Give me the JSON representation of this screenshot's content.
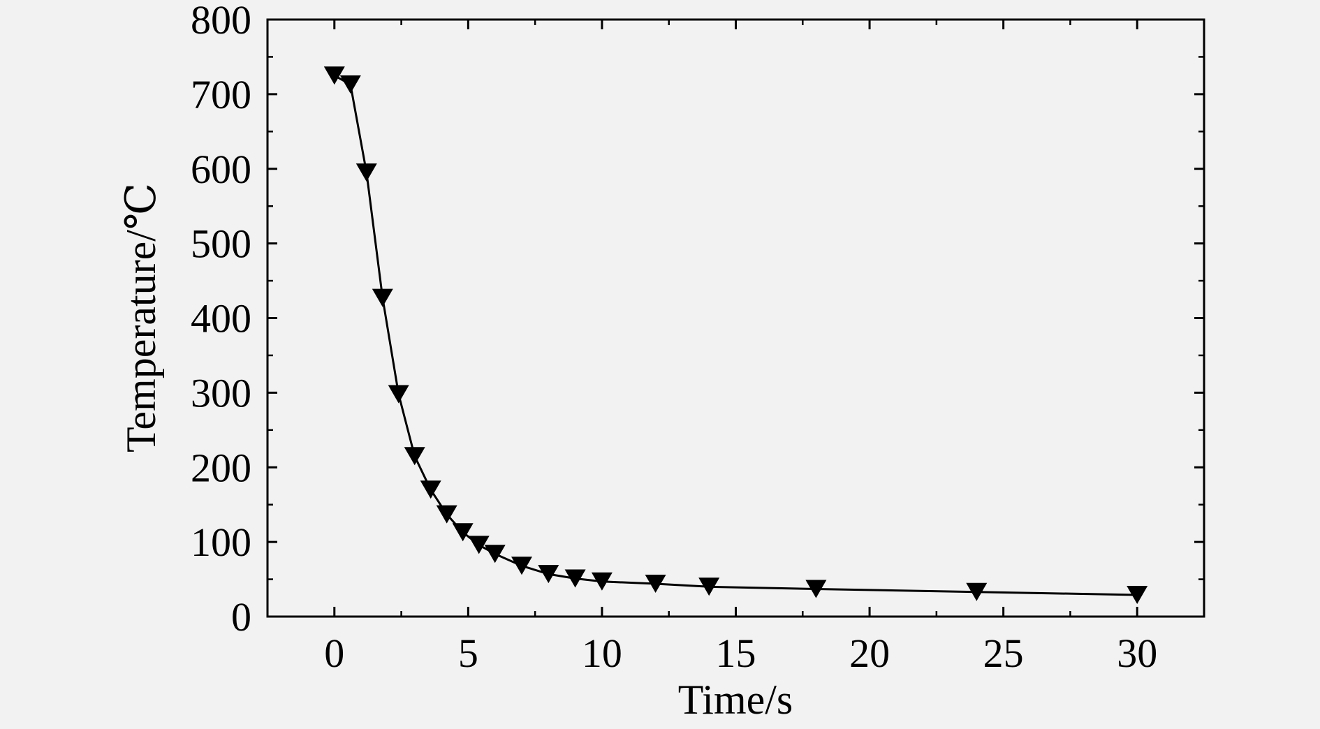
{
  "chart_data": {
    "type": "line",
    "title": "",
    "xlabel": "Time/s",
    "ylabel": "Temperature/℃",
    "xlim": [
      -2.5,
      32.5
    ],
    "ylim": [
      0,
      800
    ],
    "xticks": [
      0,
      5,
      10,
      15,
      20,
      25,
      30
    ],
    "xtick_labels": [
      "0",
      "5",
      "10",
      "15",
      "20",
      "25",
      "30"
    ],
    "yticks": [
      0,
      100,
      200,
      300,
      400,
      500,
      600,
      700,
      800
    ],
    "ytick_labels": [
      "0",
      "100",
      "200",
      "300",
      "400",
      "500",
      "600",
      "700",
      "800"
    ],
    "grid": false,
    "legend": "none",
    "marker": "triangle-down",
    "colors": {
      "line": "#000000",
      "marker": "#000000",
      "background": "#f2f2f2"
    },
    "series": [
      {
        "x": [
          0,
          0.6,
          1.2,
          1.8,
          2.4,
          3.0,
          3.6,
          4.2,
          4.8,
          5.4,
          6.0,
          7.0,
          8.0,
          9.0,
          10.0,
          12.0,
          14.0,
          18.0,
          24.0,
          30.0
        ],
        "y": [
          725,
          713,
          595,
          427,
          298,
          215,
          170,
          137,
          113,
          96,
          84,
          68,
          57,
          51,
          47,
          44,
          40,
          37,
          33,
          29
        ]
      }
    ]
  }
}
